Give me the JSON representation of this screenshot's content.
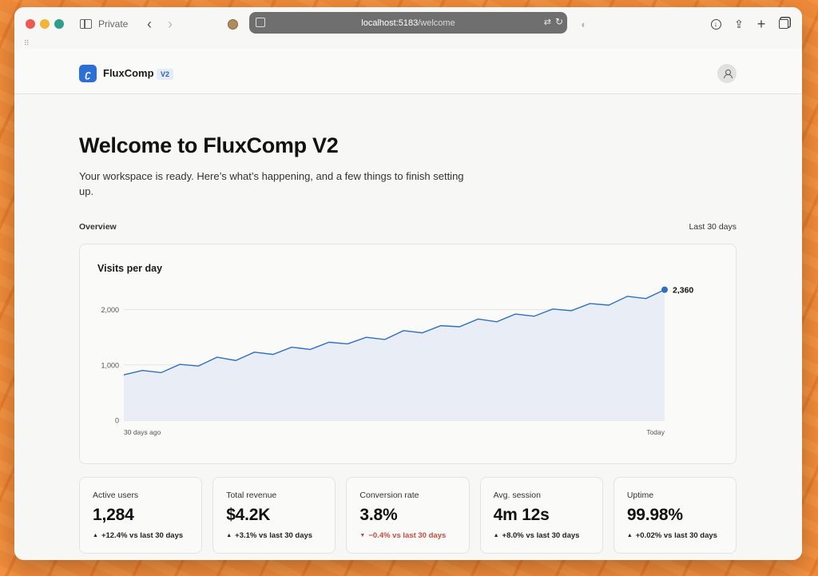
{
  "browser": {
    "private_label": "Private",
    "url_host": "localhost:5183",
    "url_path": "/welcome"
  },
  "header": {
    "brand": "FluxComp",
    "version": "V2"
  },
  "main": {
    "title": "Welcome to FluxComp V2",
    "subtitle": "Your workspace is ready. Here’s what’s happening, and a few things to finish setting up.",
    "section_label": "Overview",
    "range_label": "Last 30 days"
  },
  "chart_data": {
    "type": "area",
    "title": "Visits per day",
    "x_labels": [
      "30 days ago",
      "Today"
    ],
    "y_ticks": [
      0,
      1000,
      2000
    ],
    "y_tick_labels": [
      "0",
      "1,000",
      "2,000"
    ],
    "ylim": [
      0,
      2600
    ],
    "values": [
      820,
      900,
      860,
      1010,
      980,
      1140,
      1080,
      1230,
      1190,
      1320,
      1280,
      1410,
      1380,
      1500,
      1460,
      1620,
      1580,
      1710,
      1690,
      1830,
      1780,
      1920,
      1880,
      2010,
      1980,
      2110,
      2080,
      2240,
      2200,
      2360
    ],
    "end_label": "2,360",
    "grid": true,
    "color": "#2f6fbf",
    "fill": "#e8edf6"
  },
  "stats": [
    {
      "label": "Active users",
      "value": "1,284",
      "delta": "+12.4% vs last 30 days",
      "direction": "up"
    },
    {
      "label": "Total revenue",
      "value": "$4.2K",
      "delta": "+3.1% vs last 30 days",
      "direction": "up"
    },
    {
      "label": "Conversion rate",
      "value": "3.8%",
      "delta": "−0.4% vs last 30 days",
      "direction": "down"
    },
    {
      "label": "Avg. session",
      "value": "4m 12s",
      "delta": "+8.0% vs last 30 days",
      "direction": "up"
    },
    {
      "label": "Uptime",
      "value": "99.98%",
      "delta": "+0.02% vs last 30 days",
      "direction": "up"
    }
  ],
  "colors": {
    "accent": "#2d6fd8",
    "negative": "#c94a3a"
  }
}
